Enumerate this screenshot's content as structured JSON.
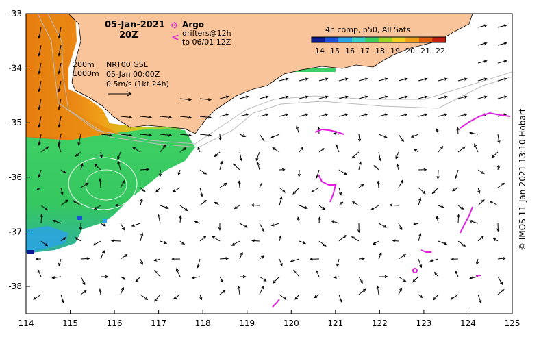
{
  "header": {
    "date": "05-Jan-2021",
    "hour": "20Z"
  },
  "legend": {
    "argo_symbol": "⚙",
    "argo_label": "Argo",
    "drifter_symbol": "<",
    "drifter_line1": "drifters@12h",
    "drifter_line2": "to 06/01 12Z",
    "colorbar_title": "4h comp, p50, All Sats",
    "colorbar_ticks": [
      "14",
      "15",
      "16",
      "17",
      "18",
      "19",
      "20",
      "21",
      "22"
    ],
    "colorbar_colors": [
      "#0a1a8c",
      "#1b4fd6",
      "#2aa3e8",
      "#36d0c8",
      "#3ecf64",
      "#9ed628",
      "#f0d020",
      "#f0a018",
      "#e06010",
      "#c02010"
    ]
  },
  "annotations": {
    "isobath1": "200m",
    "isobath2": "1000m",
    "model_line1": "NRT00 GSL",
    "model_line2": "05-Jan 00:00Z",
    "scale_line": "0.5m/s (1kt 24h)"
  },
  "axes": {
    "x_ticks": [
      "114",
      "115",
      "116",
      "117",
      "118",
      "119",
      "120",
      "121",
      "122",
      "123",
      "124",
      "125"
    ],
    "y_ticks": [
      "-33",
      "-34",
      "-35",
      "-36",
      "-37",
      "-38"
    ]
  },
  "credit": "© IMOS 11-Jan-2021 13:10 Hobart",
  "colors": {
    "land": "#f9c49a",
    "argo": "#e020e0",
    "arrow": "#000000"
  }
}
